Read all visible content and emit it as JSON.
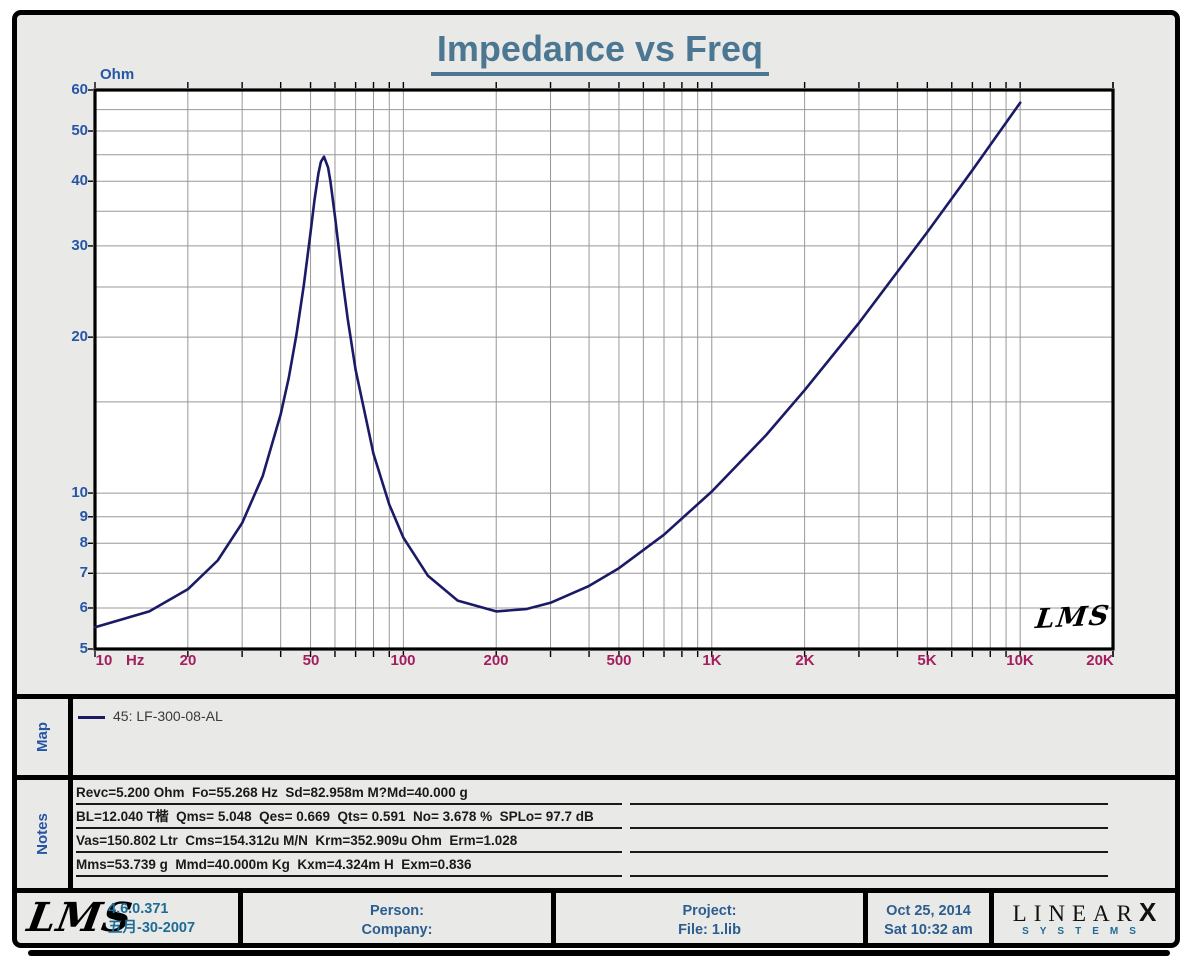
{
  "watermark": "LMS",
  "chart_data": {
    "type": "line",
    "title": "Impedance vs Freq",
    "xlabel": "Hz",
    "ylabel": "Ohm",
    "x_scale": "log",
    "y_scale": "log",
    "x_range": [
      10,
      20000
    ],
    "y_range": [
      5,
      60
    ],
    "grid": true,
    "legend_position": "map-panel-below",
    "x_tick_values": [
      10,
      20,
      50,
      100,
      200,
      500,
      1000,
      2000,
      5000,
      10000,
      20000
    ],
    "x_tick_labels": [
      "10",
      "20",
      "50",
      "100",
      "200",
      "500",
      "1K",
      "2K",
      "5K",
      "10K",
      "20K"
    ],
    "y_tick_values": [
      60,
      50,
      40,
      30,
      20,
      10,
      9,
      8,
      7,
      6,
      5
    ],
    "y_tick_labels": [
      "60",
      "50",
      "40",
      "30",
      "20",
      "10",
      "9",
      "8",
      "7",
      "6",
      "5"
    ],
    "series": [
      {
        "name": "45: LF-300-08-AL",
        "color": "#1a1a66",
        "x": [
          10,
          15,
          20,
          25,
          30,
          35,
          40,
          42.5,
          45,
          47.5,
          50,
          51.5,
          53,
          54,
          55.27,
          57,
          58,
          60,
          62,
          64,
          66,
          70,
          80,
          90,
          100,
          120,
          150,
          200,
          250,
          300,
          400,
          500,
          700,
          1000,
          1500,
          2000,
          3000,
          5000,
          7000,
          10000
        ],
        "y": [
          5.51,
          5.91,
          6.52,
          7.41,
          8.75,
          10.8,
          14.2,
          16.7,
          20.2,
          25.1,
          31.9,
          36.8,
          41.4,
          43.6,
          44.6,
          42.5,
          40.0,
          34.2,
          29.0,
          24.9,
          21.7,
          17.3,
          11.9,
          9.5,
          8.2,
          6.93,
          6.2,
          5.91,
          5.97,
          6.14,
          6.62,
          7.16,
          8.31,
          10.07,
          12.94,
          15.8,
          21.3,
          31.9,
          42.0,
          56.7
        ]
      }
    ]
  },
  "map_section": {
    "label": "Map",
    "legend_text": "45: LF-300-08-AL"
  },
  "notes_section": {
    "label": "Notes",
    "lines": [
      "Revc=5.200 Ohm  Fo=55.268 Hz  Sd=82.958m M?Md=40.000 g",
      "BL=12.040 T楷  Qms= 5.048  Qes= 0.669  Qts= 0.591  No= 3.678 %  SPLo= 97.7 dB",
      "Vas=150.802 Ltr  Cms=154.312u M/N  Krm=352.909u Ohm  Erm=1.028",
      "Mms=53.739 g  Mmd=40.000m Kg  Kxm=4.324m H  Exm=0.836"
    ]
  },
  "footer": {
    "lms_logo": "LMS",
    "version": "4.6.0.371",
    "build_date": "五月-30-2007",
    "person_label": "Person:",
    "company_label": "Company:",
    "project_label": "Project:",
    "file_label": "File: 1.lib",
    "date": "Oct 25, 2014",
    "time": "Sat 10:32 am",
    "brand_linear": "LINEAR",
    "brand_x": "X",
    "brand_systems": "SYSTEMS"
  },
  "colors": {
    "curve": "#1a1a66",
    "grid": "#989898",
    "plot_frame": "#000000",
    "title": "#4b7792",
    "y_label_blue": "#2655a5",
    "x_label_crimson": "#a31e5f",
    "footer_teal": "#1d6c96",
    "footer_blue": "#2b5d8f",
    "panel_bg": "#e9e9e7"
  }
}
